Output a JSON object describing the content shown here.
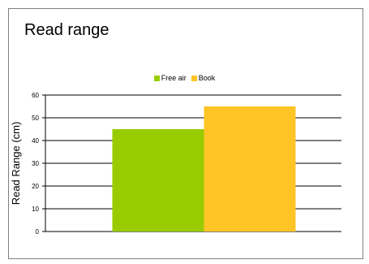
{
  "chart_data": {
    "type": "bar",
    "title": "Read range",
    "xlabel": "",
    "ylabel": "Read Range (cm)",
    "ylim": [
      0,
      60
    ],
    "yticks": [
      0,
      10,
      20,
      30,
      40,
      50,
      60
    ],
    "grid": true,
    "legend_position": "top",
    "categories": [
      ""
    ],
    "series": [
      {
        "name": "Free air",
        "values": [
          45
        ],
        "color": "#99cc00"
      },
      {
        "name": "Book",
        "values": [
          55
        ],
        "color": "#ffc425"
      }
    ]
  }
}
